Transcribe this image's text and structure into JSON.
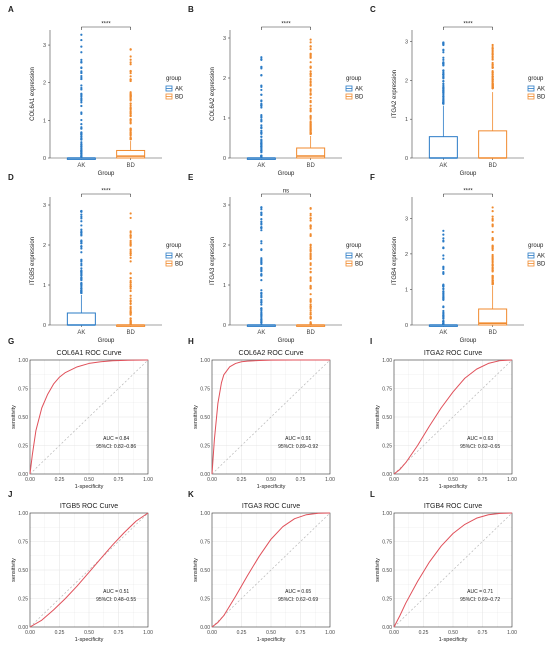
{
  "colors": {
    "AK": "#2a7bc6",
    "BD": "#f08a2e",
    "roc": "#e0505a",
    "diag": "#b8b8b8",
    "grid": "#e6e6e6",
    "panel_border": "#333333"
  },
  "panel_letters": [
    "A",
    "B",
    "C",
    "D",
    "E",
    "F",
    "G",
    "H",
    "I",
    "J",
    "K",
    "L"
  ],
  "chart_data": [
    {
      "type": "box",
      "panel": "A",
      "ylabel": "COL6A1 expression",
      "xlabel": "Group",
      "categories": [
        "AK",
        "BD"
      ],
      "ylim": [
        0,
        3.4
      ],
      "yticks": [
        0,
        1,
        2,
        3
      ],
      "significance": "****",
      "legend": {
        "title": "group",
        "entries": [
          "AK",
          "BD"
        ],
        "position": "right"
      },
      "boxes": [
        {
          "name": "AK",
          "min": 0,
          "q1": 0,
          "median": 0,
          "q3": 0,
          "max": 0,
          "outlier_range": [
            0,
            3.3
          ]
        },
        {
          "name": "BD",
          "min": 0,
          "q1": 0,
          "median": 0.05,
          "q3": 0.2,
          "max": 0.45,
          "outlier_range": [
            0.5,
            2.9
          ]
        }
      ]
    },
    {
      "type": "box",
      "panel": "B",
      "ylabel": "COL6A2 expression",
      "xlabel": "Group",
      "categories": [
        "AK",
        "BD"
      ],
      "ylim": [
        0,
        3.2
      ],
      "yticks": [
        0,
        1,
        2,
        3
      ],
      "significance": "****",
      "legend": {
        "title": "group",
        "entries": [
          "AK",
          "BD"
        ],
        "position": "right"
      },
      "boxes": [
        {
          "name": "AK",
          "min": 0,
          "q1": 0,
          "median": 0,
          "q3": 0,
          "max": 0,
          "outlier_range": [
            0,
            2.6
          ]
        },
        {
          "name": "BD",
          "min": 0,
          "q1": 0,
          "median": 0.05,
          "q3": 0.25,
          "max": 0.55,
          "outlier_range": [
            0.6,
            3.0
          ]
        }
      ]
    },
    {
      "type": "box",
      "panel": "C",
      "ylabel": "ITGA2 expression",
      "xlabel": "Group",
      "categories": [
        "AK",
        "BD"
      ],
      "ylim": [
        0,
        3.3
      ],
      "yticks": [
        0,
        1,
        2,
        3
      ],
      "significance": "****",
      "legend": {
        "title": "group",
        "entries": [
          "AK",
          "BD"
        ],
        "position": "right"
      },
      "boxes": [
        {
          "name": "AK",
          "min": 0,
          "q1": 0,
          "median": 0,
          "q3": 0.55,
          "max": 1.35,
          "outlier_range": [
            1.4,
            3.0
          ]
        },
        {
          "name": "BD",
          "min": 0,
          "q1": 0,
          "median": 0,
          "q3": 0.7,
          "max": 1.7,
          "outlier_range": [
            1.8,
            3.0
          ]
        }
      ]
    },
    {
      "type": "box",
      "panel": "D",
      "ylabel": "ITGB5 expression",
      "xlabel": "Group",
      "categories": [
        "AK",
        "BD"
      ],
      "ylim": [
        0,
        3.2
      ],
      "yticks": [
        0,
        1,
        2,
        3
      ],
      "significance": "****",
      "legend": {
        "title": "group",
        "entries": [
          "AK",
          "BD"
        ],
        "position": "right"
      },
      "boxes": [
        {
          "name": "AK",
          "min": 0,
          "q1": 0,
          "median": 0,
          "q3": 0.3,
          "max": 0.75,
          "outlier_range": [
            0.8,
            3.0
          ]
        },
        {
          "name": "BD",
          "min": 0,
          "q1": 0,
          "median": 0,
          "q3": 0,
          "max": 0,
          "outlier_range": [
            0,
            2.8
          ]
        }
      ]
    },
    {
      "type": "box",
      "panel": "E",
      "ylabel": "ITGA3 expression",
      "xlabel": "Group",
      "categories": [
        "AK",
        "BD"
      ],
      "ylim": [
        0,
        3.2
      ],
      "yticks": [
        0,
        1,
        2,
        3
      ],
      "significance": "ns",
      "legend": {
        "title": "group",
        "entries": [
          "AK",
          "BD"
        ],
        "position": "right"
      },
      "boxes": [
        {
          "name": "AK",
          "min": 0,
          "q1": 0,
          "median": 0,
          "q3": 0,
          "max": 0,
          "outlier_range": [
            0,
            3.0
          ]
        },
        {
          "name": "BD",
          "min": 0,
          "q1": 0,
          "median": 0,
          "q3": 0,
          "max": 0,
          "outlier_range": [
            0,
            3.1
          ]
        }
      ]
    },
    {
      "type": "box",
      "panel": "F",
      "ylabel": "ITGB4 expression",
      "xlabel": "Group",
      "categories": [
        "AK",
        "BD"
      ],
      "ylim": [
        0,
        3.6
      ],
      "yticks": [
        0,
        1,
        2,
        3
      ],
      "significance": "****",
      "legend": {
        "title": "group",
        "entries": [
          "AK",
          "BD"
        ],
        "position": "right"
      },
      "boxes": [
        {
          "name": "AK",
          "min": 0,
          "q1": 0,
          "median": 0,
          "q3": 0,
          "max": 0,
          "outlier_range": [
            0,
            3.0
          ]
        },
        {
          "name": "BD",
          "min": 0,
          "q1": 0,
          "median": 0.05,
          "q3": 0.45,
          "max": 1.1,
          "outlier_range": [
            1.15,
            3.4
          ]
        }
      ]
    },
    {
      "type": "line",
      "panel": "G",
      "title": "COL6A1 ROC Curve",
      "xlabel": "1-specificity",
      "ylabel": "sensitivity",
      "xlim": [
        0,
        1
      ],
      "ylim": [
        0,
        1
      ],
      "ticks": [
        "0.00",
        "0.25",
        "0.50",
        "0.75",
        "1.00"
      ],
      "grid": true,
      "auc_text": "AUC = 0.84",
      "ci_text": "95%CI: 0.82–0.86",
      "series": [
        {
          "x": [
            0,
            0.02,
            0.05,
            0.1,
            0.15,
            0.2,
            0.25,
            0.3,
            0.4,
            0.5,
            0.6,
            0.7,
            0.8,
            0.9,
            1.0
          ],
          "y": [
            0,
            0.17,
            0.38,
            0.58,
            0.7,
            0.79,
            0.85,
            0.89,
            0.94,
            0.97,
            0.985,
            0.993,
            0.997,
            0.999,
            1.0
          ]
        }
      ]
    },
    {
      "type": "line",
      "panel": "H",
      "title": "COL6A2 ROC Curve",
      "xlabel": "1-specificity",
      "ylabel": "sensitivity",
      "xlim": [
        0,
        1
      ],
      "ylim": [
        0,
        1
      ],
      "ticks": [
        "0.00",
        "0.25",
        "0.50",
        "0.75",
        "1.00"
      ],
      "grid": true,
      "auc_text": "AUC = 0.91",
      "ci_text": "95%CI: 0.89–0.92",
      "series": [
        {
          "x": [
            0,
            0.02,
            0.05,
            0.08,
            0.1,
            0.15,
            0.2,
            0.25,
            0.3,
            0.4,
            0.5,
            0.7,
            1.0
          ],
          "y": [
            0,
            0.3,
            0.62,
            0.8,
            0.87,
            0.94,
            0.97,
            0.985,
            0.99,
            0.996,
            0.999,
            1.0,
            1.0
          ]
        }
      ]
    },
    {
      "type": "line",
      "panel": "I",
      "title": "ITGA2 ROC Curve",
      "xlabel": "1-specificity",
      "ylabel": "sensitivity",
      "xlim": [
        0,
        1
      ],
      "ylim": [
        0,
        1
      ],
      "ticks": [
        "0.00",
        "0.25",
        "0.50",
        "0.75",
        "1.00"
      ],
      "grid": true,
      "auc_text": "AUC = 0.63",
      "ci_text": "95%CI: 0.62–0.65",
      "series": [
        {
          "x": [
            0,
            0.05,
            0.1,
            0.2,
            0.3,
            0.4,
            0.5,
            0.6,
            0.7,
            0.8,
            0.9,
            1.0
          ],
          "y": [
            0,
            0.04,
            0.1,
            0.25,
            0.42,
            0.58,
            0.72,
            0.84,
            0.92,
            0.97,
            0.995,
            1.0
          ]
        }
      ]
    },
    {
      "type": "line",
      "panel": "J",
      "title": "ITGB5 ROC Curve",
      "xlabel": "1-specificity",
      "ylabel": "sensitivity",
      "xlim": [
        0,
        1
      ],
      "ylim": [
        0,
        1
      ],
      "ticks": [
        "0.00",
        "0.25",
        "0.50",
        "0.75",
        "1.00"
      ],
      "grid": true,
      "auc_text": "AUC = 0.51",
      "ci_text": "95%CI: 0.48–0.55",
      "series": [
        {
          "x": [
            0,
            0.1,
            0.2,
            0.3,
            0.4,
            0.5,
            0.6,
            0.7,
            0.8,
            0.9,
            1.0
          ],
          "y": [
            0,
            0.06,
            0.15,
            0.25,
            0.36,
            0.48,
            0.6,
            0.72,
            0.83,
            0.93,
            1.0
          ]
        }
      ]
    },
    {
      "type": "line",
      "panel": "K",
      "title": "ITGA3 ROC Curve",
      "xlabel": "1-specificity",
      "ylabel": "sensitivity",
      "xlim": [
        0,
        1
      ],
      "ylim": [
        0,
        1
      ],
      "ticks": [
        "0.00",
        "0.25",
        "0.50",
        "0.75",
        "1.00"
      ],
      "grid": true,
      "auc_text": "AUC = 0.65",
      "ci_text": "95%CI: 0.62–0.69",
      "series": [
        {
          "x": [
            0,
            0.05,
            0.1,
            0.2,
            0.3,
            0.4,
            0.5,
            0.6,
            0.7,
            0.8,
            0.9,
            1.0
          ],
          "y": [
            0,
            0.04,
            0.1,
            0.27,
            0.45,
            0.62,
            0.77,
            0.88,
            0.95,
            0.985,
            0.998,
            1.0
          ]
        }
      ]
    },
    {
      "type": "line",
      "panel": "L",
      "title": "ITGB4 ROC Curve",
      "xlabel": "1-specificity",
      "ylabel": "sensitivity",
      "xlim": [
        0,
        1
      ],
      "ylim": [
        0,
        1
      ],
      "ticks": [
        "0.00",
        "0.25",
        "0.50",
        "0.75",
        "1.00"
      ],
      "grid": true,
      "auc_text": "AUC = 0.71",
      "ci_text": "95%CI: 0.69–0.72",
      "series": [
        {
          "x": [
            0,
            0.05,
            0.1,
            0.2,
            0.3,
            0.4,
            0.5,
            0.6,
            0.7,
            0.8,
            0.9,
            1.0
          ],
          "y": [
            0,
            0.1,
            0.21,
            0.4,
            0.57,
            0.71,
            0.82,
            0.9,
            0.955,
            0.985,
            0.997,
            1.0
          ]
        }
      ]
    }
  ]
}
